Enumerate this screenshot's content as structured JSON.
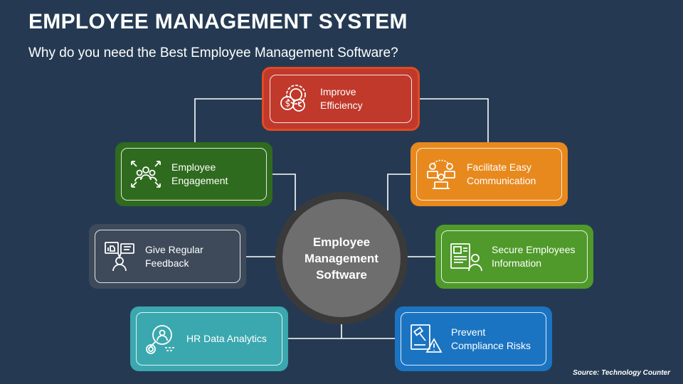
{
  "title": "EMPLOYEE MANAGEMENT SYSTEM",
  "subtitle": "Why do you need the Best Employee Management Software?",
  "hub": {
    "label": "Employee\nManagement\nSoftware"
  },
  "nodes": [
    {
      "id": "improve",
      "label": "Improve\nEfficiency",
      "icon": "money-gear-icon",
      "color": "#c0392b"
    },
    {
      "id": "engagement",
      "label": "Employee\nEngagement",
      "icon": "team-arrows-icon",
      "color": "#2f6b1e"
    },
    {
      "id": "communication",
      "label": "Facilitate Easy\nCommunication",
      "icon": "meeting-laptop-icon",
      "color": "#e8891e"
    },
    {
      "id": "feedback",
      "label": "Give Regular\nFeedback",
      "icon": "feedback-board-icon",
      "color": "#3e4a5a"
    },
    {
      "id": "secure",
      "label": "Secure Employees\nInformation",
      "icon": "employee-id-icon",
      "color": "#4f9a2a"
    },
    {
      "id": "analytics",
      "label": "HR Data Analytics",
      "icon": "magnifier-analytics-icon",
      "color": "#3aa8ae"
    },
    {
      "id": "compliance",
      "label": "Prevent\nCompliance Risks",
      "icon": "gavel-warning-icon",
      "color": "#1b74c2"
    }
  ],
  "source": "Source: Technology Counter"
}
